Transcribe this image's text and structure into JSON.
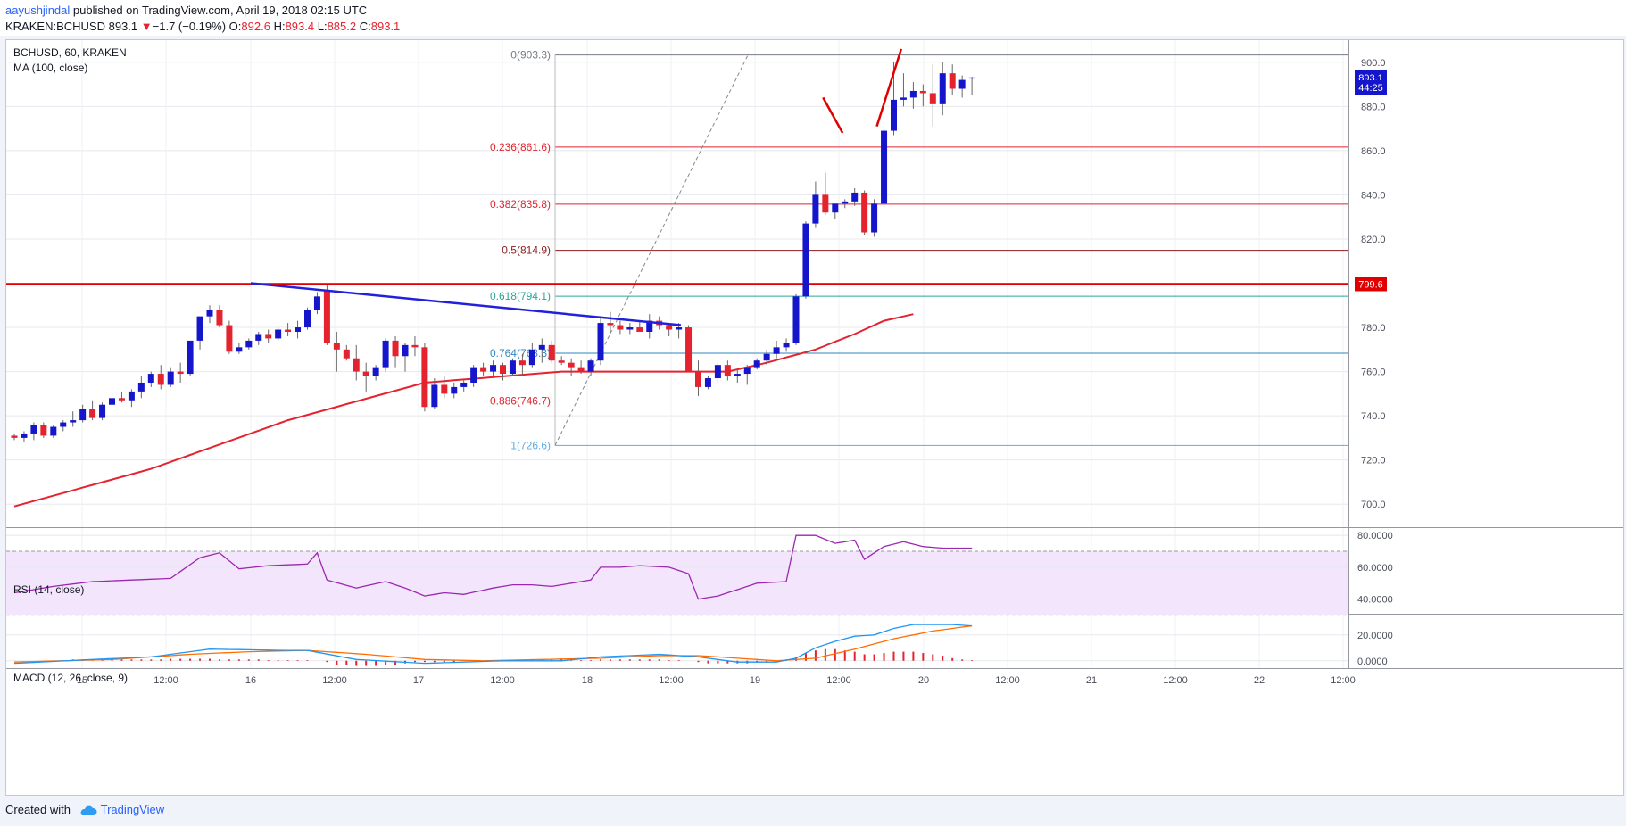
{
  "header": {
    "author": "aayushjindal",
    "published_text": " published on TradingView.com, April 19, 2018 02:15 UTC",
    "symbol": "KRAKEN:BCHUSD",
    "last": "893.1",
    "change_arrow": "▼",
    "change": "−1.7 (−0.19%)",
    "o_label": "O:",
    "o_value": "892.6",
    "h_label": "H:",
    "h_value": "893.4",
    "l_label": "L:",
    "l_value": "885.2",
    "c_label": "C:",
    "c_value": "893.1"
  },
  "footer": {
    "created_with": "Created with",
    "brand": "TradingView"
  },
  "colors": {
    "up": "#1515cc",
    "down": "#e4232f",
    "ma": "#e4232f",
    "trend": "#2020dd",
    "resistance": "#e00000",
    "rsi": "#9c27b0",
    "rsi_band": "#f3e5fb",
    "macd": "#2196f3",
    "signal": "#ff6d00",
    "hist": "#e4232f"
  },
  "chart_data": {
    "type": "candlestick",
    "symbol": "BCHUSD, 60, KRAKEN",
    "indicator": "MA (100, close)",
    "ylim": [
      690,
      910
    ],
    "y_ticks": [
      700,
      720,
      740,
      760,
      780,
      800,
      820,
      840,
      860,
      880,
      900
    ],
    "x_ticks": [
      "15",
      "12:00",
      "16",
      "12:00",
      "17",
      "12:00",
      "18",
      "12:00",
      "19",
      "12:00",
      "20",
      "12:00",
      "21",
      "12:00",
      "22",
      "12:00"
    ],
    "price_badges": [
      {
        "text": "893.1",
        "color": "#1515cc",
        "value": 893.1
      },
      {
        "text": "44:25",
        "color": "#1515cc",
        "value": 888.6
      },
      {
        "text": "799.6",
        "color": "#e00000",
        "value": 799.6
      }
    ],
    "resistance_level": 799.6,
    "fib_levels": [
      {
        "ratio": "0",
        "price": 903.3,
        "label": "0(903.3)",
        "color": "#787b86"
      },
      {
        "ratio": "0.236",
        "price": 861.6,
        "label": "0.236(861.6)",
        "color": "#e4232f"
      },
      {
        "ratio": "0.382",
        "price": 835.8,
        "label": "0.382(835.8)",
        "color": "#e4232f"
      },
      {
        "ratio": "0.5",
        "price": 814.9,
        "label": "0.5(814.9)",
        "color": "#8b1c1c"
      },
      {
        "ratio": "0.618",
        "price": 794.1,
        "label": "0.618(794.1)",
        "color": "#26a69a"
      },
      {
        "ratio": "0.764",
        "price": 768.3,
        "label": "0.764(768.3)",
        "color": "#2e86c1"
      },
      {
        "ratio": "0.886",
        "price": 746.7,
        "label": "0.886(746.7)",
        "color": "#e4232f"
      },
      {
        "ratio": "1",
        "price": 726.6,
        "label": "1(726.6)",
        "color": "#5dade2"
      }
    ],
    "trendline": [
      {
        "i": 0,
        "p": 800
      },
      {
        "i": 57,
        "p": 781
      }
    ],
    "forecast_arrows": [
      {
        "from": [
          64.5,
          884
        ],
        "to": [
          66.5,
          868
        ]
      },
      {
        "from": [
          70,
          871
        ],
        "to": [
          72.5,
          906
        ]
      }
    ],
    "candles": [
      [
        731,
        732,
        729,
        730
      ],
      [
        730,
        733,
        728,
        732
      ],
      [
        732,
        737,
        729,
        736
      ],
      [
        736,
        737,
        730,
        731
      ],
      [
        731,
        736,
        730,
        735
      ],
      [
        735,
        738,
        733,
        737
      ],
      [
        737,
        742,
        735,
        738
      ],
      [
        738,
        745,
        737,
        743
      ],
      [
        743,
        747,
        738,
        739
      ],
      [
        739,
        746,
        738,
        745
      ],
      [
        745,
        750,
        743,
        748
      ],
      [
        748,
        751,
        746,
        747
      ],
      [
        747,
        752,
        744,
        751
      ],
      [
        751,
        758,
        748,
        755
      ],
      [
        755,
        760,
        753,
        759
      ],
      [
        759,
        763,
        752,
        754
      ],
      [
        754,
        762,
        753,
        760
      ],
      [
        760,
        764,
        755,
        759
      ],
      [
        759,
        772,
        758,
        774
      ],
      [
        774,
        785,
        770,
        785
      ],
      [
        785,
        790,
        782,
        788
      ],
      [
        788,
        790,
        780,
        781
      ],
      [
        781,
        783,
        768,
        769
      ],
      [
        769,
        773,
        768,
        771
      ],
      [
        771,
        775,
        770,
        774
      ],
      [
        774,
        778,
        772,
        777
      ],
      [
        777,
        779,
        773,
        775
      ],
      [
        775,
        780,
        774,
        779
      ],
      [
        779,
        782,
        776,
        778
      ],
      [
        778,
        783,
        775,
        780
      ],
      [
        780,
        789,
        779,
        788
      ],
      [
        788,
        796,
        786,
        794
      ],
      [
        797,
        799,
        772,
        773
      ],
      [
        773,
        778,
        760,
        770
      ],
      [
        770,
        772,
        765,
        766
      ],
      [
        766,
        772,
        756,
        760
      ],
      [
        760,
        764,
        751,
        758
      ],
      [
        758,
        763,
        756,
        762
      ],
      [
        762,
        775,
        760,
        774
      ],
      [
        774,
        776,
        762,
        767
      ],
      [
        767,
        773,
        760,
        772
      ],
      [
        772,
        776,
        767,
        771
      ],
      [
        771,
        773,
        742,
        744
      ],
      [
        744,
        757,
        743,
        754
      ],
      [
        754,
        758,
        748,
        750
      ],
      [
        750,
        755,
        748,
        753
      ],
      [
        753,
        756,
        751,
        755
      ],
      [
        755,
        763,
        753,
        762
      ],
      [
        762,
        764,
        758,
        760
      ],
      [
        760,
        765,
        757,
        763
      ],
      [
        763,
        764,
        756,
        759
      ],
      [
        759,
        766,
        758,
        765
      ],
      [
        765,
        768,
        758,
        763
      ],
      [
        763,
        773,
        762,
        770
      ],
      [
        770,
        775,
        764,
        772
      ],
      [
        772,
        774,
        764,
        765
      ],
      [
        765,
        767,
        763,
        764
      ],
      [
        764,
        766,
        758,
        762
      ],
      [
        762,
        765,
        759,
        760
      ],
      [
        760,
        766,
        758,
        765
      ],
      [
        765,
        784,
        763,
        782
      ],
      [
        782,
        787,
        778,
        781
      ],
      [
        781,
        783,
        777,
        779
      ],
      [
        779,
        782,
        777,
        780
      ],
      [
        780,
        783,
        778,
        778
      ],
      [
        778,
        786,
        775,
        783
      ],
      [
        783,
        785,
        779,
        781
      ],
      [
        781,
        782,
        776,
        779
      ],
      [
        779,
        782,
        775,
        780
      ],
      [
        780,
        781,
        760,
        760
      ],
      [
        760,
        765,
        749,
        753
      ],
      [
        753,
        758,
        752,
        757
      ],
      [
        757,
        764,
        755,
        763
      ],
      [
        763,
        765,
        756,
        758
      ],
      [
        758,
        761,
        755,
        759
      ],
      [
        759,
        763,
        754,
        762
      ],
      [
        762,
        766,
        761,
        765
      ],
      [
        765,
        770,
        763,
        768
      ],
      [
        768,
        774,
        766,
        771
      ],
      [
        771,
        775,
        769,
        773
      ],
      [
        773,
        795,
        772,
        794
      ],
      [
        794,
        828,
        793,
        827
      ],
      [
        827,
        846,
        825,
        840
      ],
      [
        840,
        850,
        831,
        832
      ],
      [
        832,
        836,
        829,
        836
      ],
      [
        836,
        838,
        834,
        837
      ],
      [
        837,
        843,
        835,
        841
      ],
      [
        841,
        842,
        822,
        823
      ],
      [
        823,
        838,
        821,
        836
      ],
      [
        836,
        870,
        834,
        869
      ],
      [
        869,
        900,
        867,
        883
      ],
      [
        883,
        895,
        880,
        884
      ],
      [
        884,
        891,
        879,
        887
      ],
      [
        887,
        890,
        880,
        886
      ],
      [
        886,
        899,
        871,
        881
      ],
      [
        881,
        900,
        876,
        895
      ],
      [
        895,
        899,
        885,
        888
      ],
      [
        888,
        894,
        884,
        892
      ],
      [
        892.6,
        893.4,
        885.2,
        893.1
      ]
    ],
    "ma100_anchors": [
      [
        0,
        699
      ],
      [
        14,
        716
      ],
      [
        28,
        738
      ],
      [
        42,
        755
      ],
      [
        56,
        760
      ],
      [
        66,
        760
      ],
      [
        73,
        760
      ],
      [
        77,
        764
      ],
      [
        82,
        770
      ],
      [
        86,
        777
      ],
      [
        89,
        783
      ],
      [
        92,
        786
      ]
    ],
    "rsi": {
      "label": "RSI (14, close)",
      "ylim": [
        32,
        84
      ],
      "band": [
        30,
        70
      ],
      "ticks": [
        40,
        60,
        80
      ],
      "tick_labels": [
        "40.0000",
        "60.0000",
        "80.0000"
      ],
      "anchors": [
        [
          0,
          44
        ],
        [
          4,
          48
        ],
        [
          8,
          51
        ],
        [
          12,
          52
        ],
        [
          16,
          53
        ],
        [
          19,
          66
        ],
        [
          21,
          69
        ],
        [
          23,
          59
        ],
        [
          26,
          61
        ],
        [
          30,
          62
        ],
        [
          31,
          69
        ],
        [
          32,
          52
        ],
        [
          35,
          47
        ],
        [
          38,
          51
        ],
        [
          40,
          47
        ],
        [
          42,
          42
        ],
        [
          44,
          44
        ],
        [
          46,
          43
        ],
        [
          49,
          47
        ],
        [
          51,
          49
        ],
        [
          53,
          49
        ],
        [
          55,
          48
        ],
        [
          57,
          50
        ],
        [
          59,
          52
        ],
        [
          60,
          60
        ],
        [
          62,
          60
        ],
        [
          64,
          61
        ],
        [
          67,
          60
        ],
        [
          69,
          56
        ],
        [
          70,
          40
        ],
        [
          72,
          42
        ],
        [
          74,
          46
        ],
        [
          76,
          50
        ],
        [
          79,
          51
        ],
        [
          80,
          80
        ],
        [
          82,
          80
        ],
        [
          84,
          75
        ],
        [
          86,
          77
        ],
        [
          87,
          65
        ],
        [
          89,
          73
        ],
        [
          91,
          76
        ],
        [
          93,
          73
        ],
        [
          95,
          72
        ],
        [
          98,
          72
        ]
      ]
    },
    "macd": {
      "label": "MACD (12, 26, close, 9)",
      "ylim": [
        -5,
        35
      ],
      "ticks": [
        0,
        20
      ],
      "tick_labels": [
        "0.0000",
        "20.0000"
      ],
      "macd_anchors": [
        [
          0,
          -2
        ],
        [
          8,
          1
        ],
        [
          14,
          3
        ],
        [
          20,
          9
        ],
        [
          28,
          8
        ],
        [
          30,
          8
        ],
        [
          35,
          1
        ],
        [
          42,
          -2
        ],
        [
          50,
          0
        ],
        [
          56,
          0
        ],
        [
          60,
          3
        ],
        [
          66,
          5
        ],
        [
          70,
          3
        ],
        [
          74,
          -1
        ],
        [
          78,
          -1
        ],
        [
          80,
          2
        ],
        [
          82,
          10
        ],
        [
          84,
          15
        ],
        [
          86,
          19
        ],
        [
          88,
          20
        ],
        [
          90,
          25
        ],
        [
          92,
          28
        ],
        [
          96,
          28
        ],
        [
          98,
          27
        ]
      ],
      "signal_anchors": [
        [
          0,
          -1
        ],
        [
          10,
          1
        ],
        [
          18,
          5
        ],
        [
          24,
          7
        ],
        [
          30,
          8
        ],
        [
          36,
          5
        ],
        [
          42,
          1
        ],
        [
          48,
          0
        ],
        [
          54,
          1
        ],
        [
          60,
          2
        ],
        [
          66,
          4
        ],
        [
          70,
          4
        ],
        [
          74,
          2
        ],
        [
          78,
          0
        ],
        [
          82,
          2
        ],
        [
          86,
          9
        ],
        [
          90,
          17
        ],
        [
          94,
          23
        ],
        [
          98,
          27
        ]
      ],
      "hist": [
        0,
        0,
        0,
        0,
        0,
        0.5,
        1,
        1,
        1,
        1,
        1,
        1,
        1,
        1,
        1,
        1,
        1.5,
        1.5,
        1.5,
        1.5,
        1.5,
        1,
        1,
        1,
        1,
        1,
        0.5,
        0.5,
        0.5,
        0.5,
        0.5,
        0,
        -1,
        -3,
        -3,
        -4,
        -4,
        -4,
        -3,
        -3,
        -2,
        -1,
        -1,
        -1,
        -1,
        -1,
        0,
        0,
        0,
        0,
        0,
        0,
        0.5,
        0.5,
        1,
        1,
        1,
        0.5,
        0.5,
        0.5,
        1,
        1,
        1,
        1,
        1,
        1,
        1,
        0.5,
        0.5,
        0,
        -1,
        -2,
        -2,
        -2,
        -2,
        -2,
        -1,
        -1,
        0,
        1,
        3,
        6,
        8,
        9,
        9,
        8,
        7,
        5,
        5,
        6,
        7,
        7,
        7,
        6,
        5,
        4,
        2,
        1,
        0.5
      ]
    }
  }
}
